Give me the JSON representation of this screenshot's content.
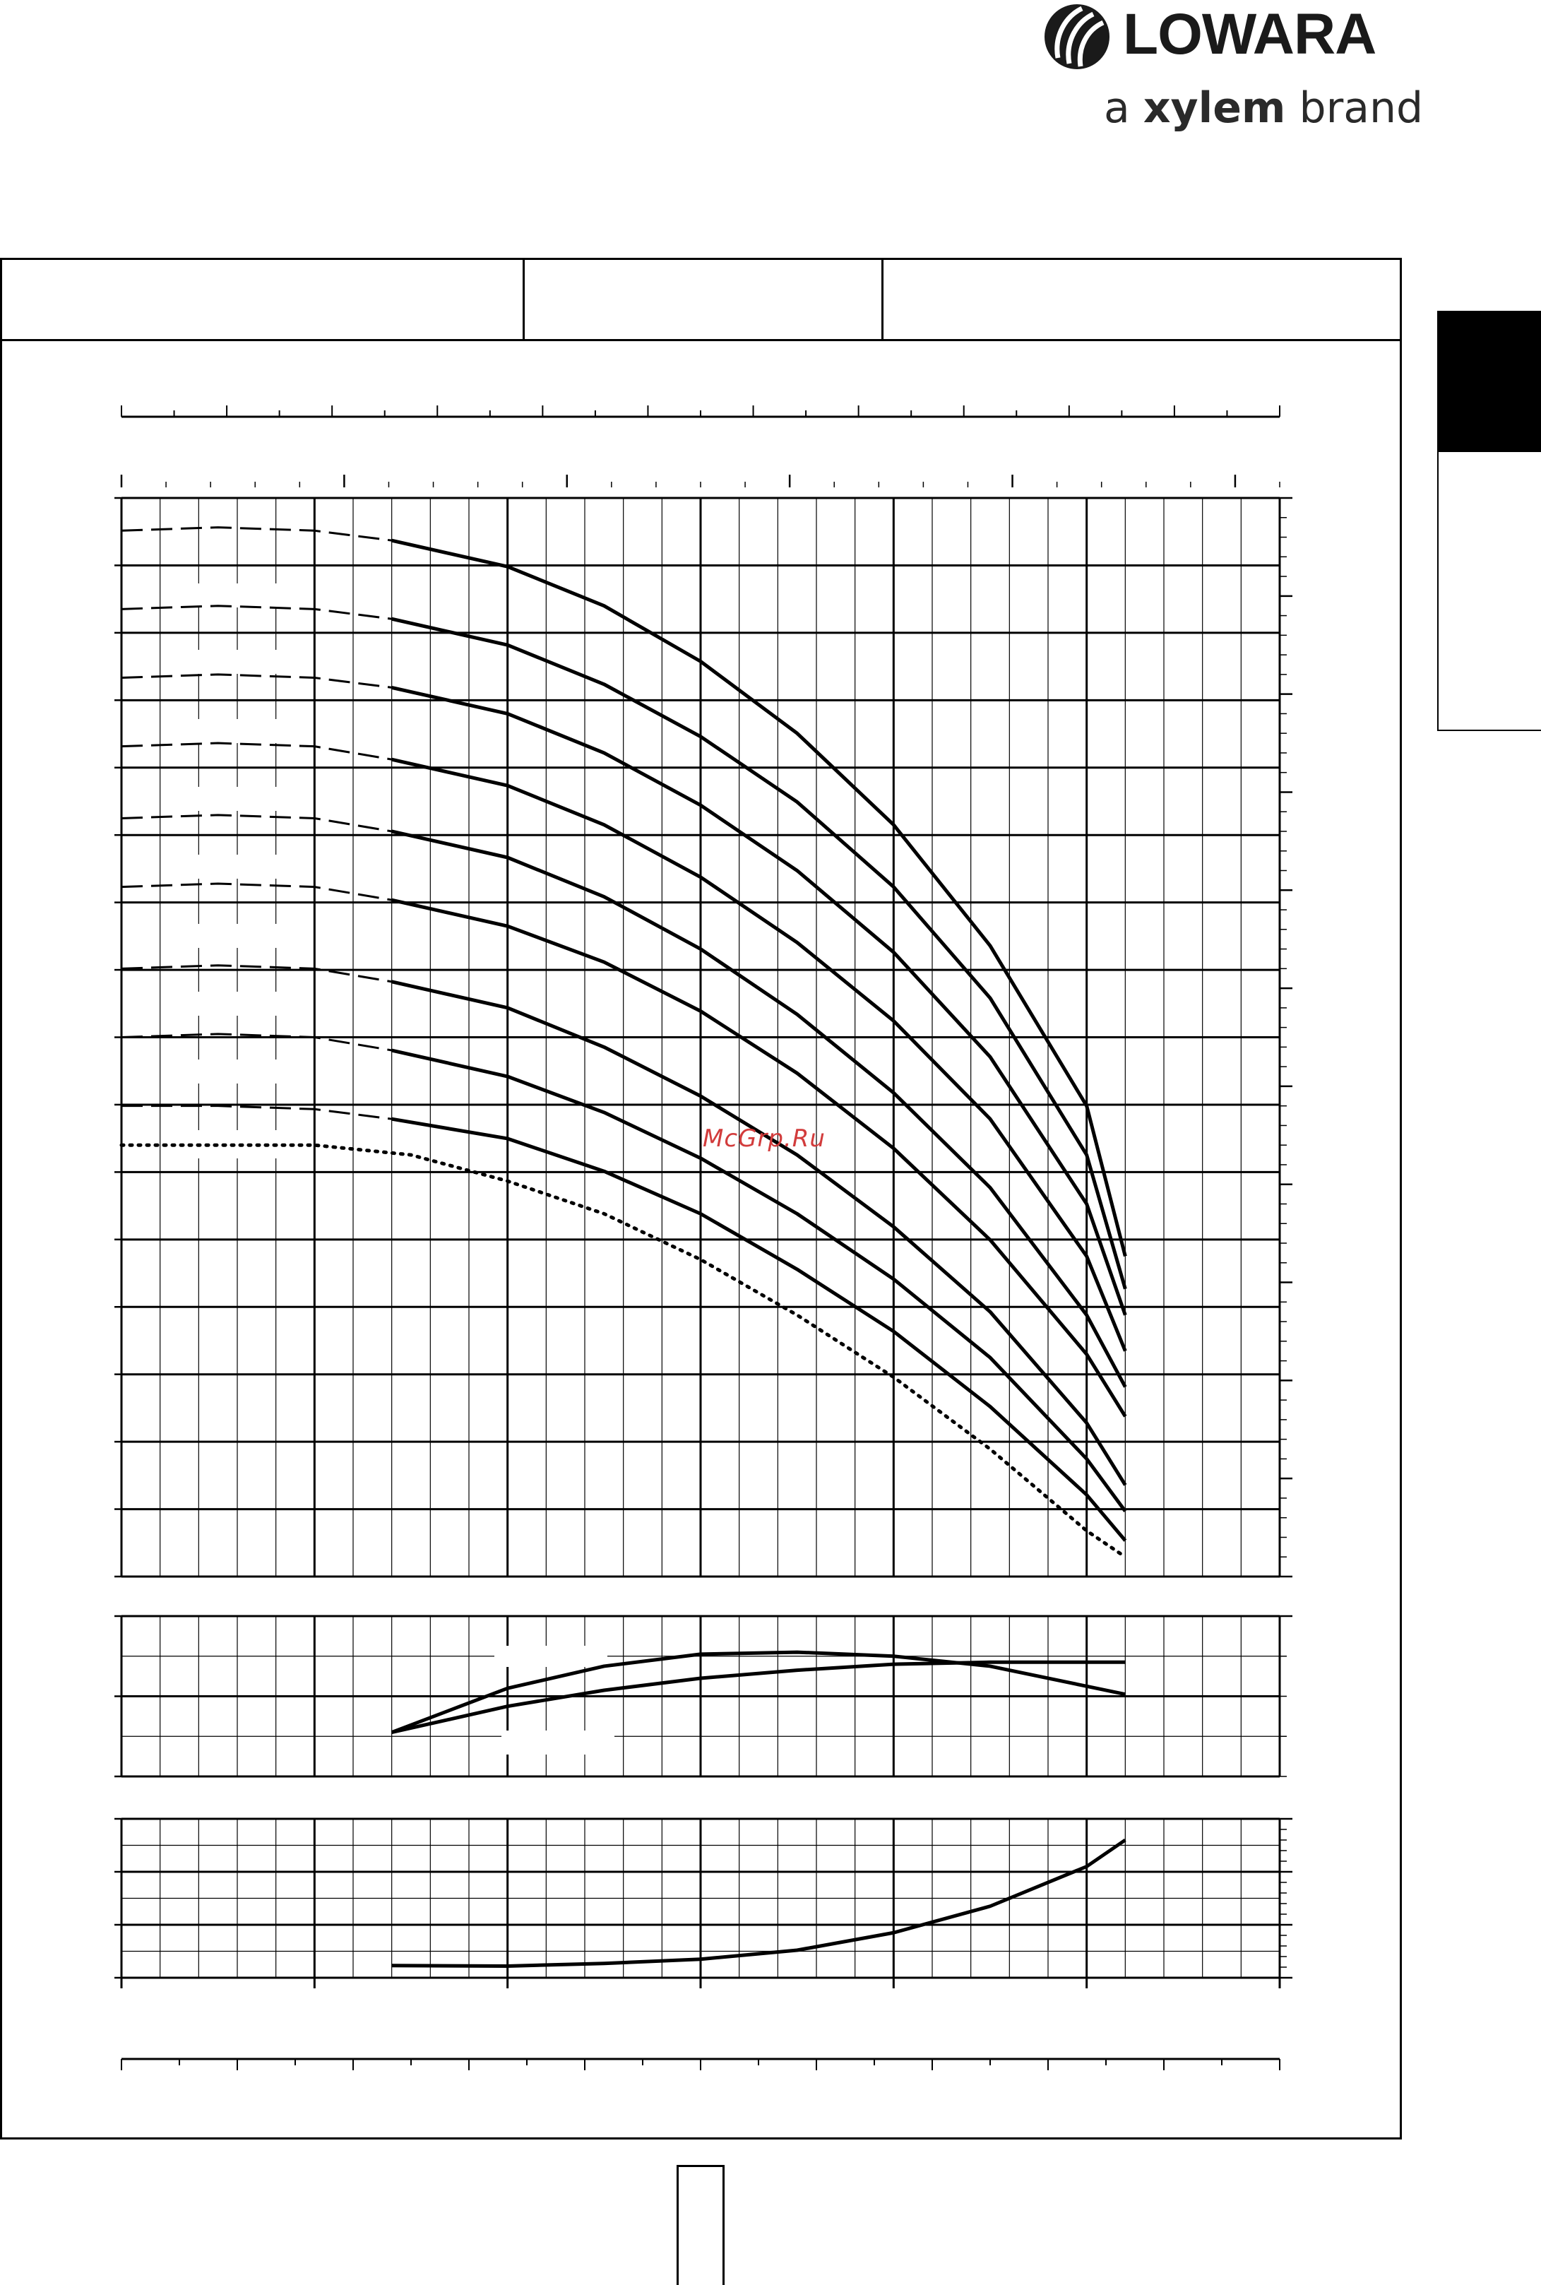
{
  "brand": {
    "logo_name": "LOWARA",
    "tagline_prefix": "a ",
    "tagline_brand": "xylem",
    "tagline_suffix": " brand"
  },
  "watermark": "McGrp.Ru",
  "colors": {
    "ink": "#000000",
    "watermark": "#d23c3c"
  },
  "chart_data": [
    {
      "type": "line",
      "panel": "head",
      "title": "",
      "xlabel": "",
      "ylabel": "",
      "xlim": [
        0,
        6
      ],
      "ylim": [
        0,
        16.5
      ],
      "grid": true,
      "series": [
        {
          "line_style": "dotted",
          "x": [
            0,
            0.5,
            1.0,
            1.5,
            2.0,
            2.5,
            3.0,
            3.5,
            4.0,
            4.5,
            5.0,
            5.2
          ],
          "y": [
            6.6,
            6.6,
            6.6,
            6.45,
            6.05,
            5.55,
            4.85,
            4.0,
            3.05,
            1.95,
            0.7,
            0.3
          ]
        },
        {
          "line_style": "solid",
          "dashed_below_x": 1.4,
          "x": [
            0,
            0.5,
            1.0,
            1.4,
            2.0,
            2.5,
            3.0,
            3.5,
            4.0,
            4.5,
            5.0,
            5.2
          ],
          "y": [
            7.2,
            7.2,
            7.15,
            7.0,
            6.7,
            6.2,
            5.55,
            4.7,
            3.75,
            2.6,
            1.25,
            0.55
          ]
        },
        {
          "line_style": "solid",
          "dashed_below_x": 1.4,
          "x": [
            0,
            0.5,
            1.0,
            1.4,
            2.0,
            2.5,
            3.0,
            3.5,
            4.0,
            4.5,
            5.0,
            5.2
          ],
          "y": [
            8.25,
            8.3,
            8.25,
            8.05,
            7.65,
            7.1,
            6.4,
            5.55,
            4.55,
            3.35,
            1.8,
            1.0
          ]
        },
        {
          "line_style": "solid",
          "dashed_below_x": 1.4,
          "x": [
            0,
            0.5,
            1.0,
            1.4,
            2.0,
            2.5,
            3.0,
            3.5,
            4.0,
            4.5,
            5.0,
            5.2
          ],
          "y": [
            9.3,
            9.35,
            9.3,
            9.1,
            8.7,
            8.1,
            7.35,
            6.45,
            5.35,
            4.05,
            2.35,
            1.4
          ]
        },
        {
          "line_style": "solid",
          "dashed_below_x": 1.4,
          "x": [
            0,
            0.5,
            1.0,
            1.4,
            2.0,
            2.5,
            3.0,
            3.5,
            4.0,
            4.5,
            5.0,
            5.2
          ],
          "y": [
            10.55,
            10.6,
            10.55,
            10.35,
            9.95,
            9.4,
            8.65,
            7.7,
            6.55,
            5.15,
            3.4,
            2.45
          ]
        },
        {
          "line_style": "solid",
          "dashed_below_x": 1.4,
          "x": [
            0,
            0.5,
            1.0,
            1.4,
            2.0,
            2.5,
            3.0,
            3.5,
            4.0,
            4.5,
            5.0,
            5.2
          ],
          "y": [
            11.6,
            11.65,
            11.6,
            11.4,
            11.0,
            10.4,
            9.6,
            8.6,
            7.4,
            5.95,
            4.0,
            2.9
          ]
        },
        {
          "line_style": "solid",
          "dashed_below_x": 1.4,
          "x": [
            0,
            0.5,
            1.0,
            1.4,
            2.0,
            2.5,
            3.0,
            3.5,
            4.0,
            4.5,
            5.0,
            5.2
          ],
          "y": [
            12.7,
            12.75,
            12.7,
            12.5,
            12.1,
            11.5,
            10.7,
            9.7,
            8.5,
            7.0,
            4.9,
            3.45
          ]
        },
        {
          "line_style": "solid",
          "dashed_below_x": 1.4,
          "x": [
            0,
            0.5,
            1.0,
            1.4,
            2.0,
            2.5,
            3.0,
            3.5,
            4.0,
            4.5,
            5.0,
            5.2
          ],
          "y": [
            13.75,
            13.8,
            13.75,
            13.6,
            13.2,
            12.6,
            11.8,
            10.8,
            9.55,
            7.95,
            5.7,
            4.0
          ]
        },
        {
          "line_style": "solid",
          "dashed_below_x": 1.4,
          "x": [
            0,
            0.5,
            1.0,
            1.4,
            2.0,
            2.5,
            3.0,
            3.5,
            4.0,
            4.5,
            5.0,
            5.2
          ],
          "y": [
            14.8,
            14.85,
            14.8,
            14.65,
            14.25,
            13.65,
            12.85,
            11.85,
            10.55,
            8.85,
            6.45,
            4.4
          ]
        },
        {
          "line_style": "solid",
          "dashed_below_x": 1.4,
          "x": [
            0,
            0.5,
            1.0,
            1.4,
            2.0,
            2.5,
            3.0,
            3.5,
            4.0,
            4.5,
            5.0,
            5.2
          ],
          "y": [
            16.0,
            16.05,
            16.0,
            15.85,
            15.45,
            14.85,
            14.0,
            12.9,
            11.5,
            9.65,
            7.2,
            4.9
          ]
        }
      ]
    },
    {
      "type": "line",
      "panel": "efficiency",
      "title": "",
      "xlabel": "",
      "ylabel": "",
      "xlim": [
        0,
        6
      ],
      "ylim": [
        0,
        4
      ],
      "grid": true,
      "series": [
        {
          "line_style": "solid",
          "x": [
            1.4,
            2.0,
            2.5,
            3.0,
            3.5,
            4.0,
            4.5,
            5.0,
            5.2
          ],
          "y": [
            1.1,
            2.2,
            2.75,
            3.05,
            3.1,
            3.0,
            2.75,
            2.25,
            2.05
          ]
        },
        {
          "line_style": "solid",
          "x": [
            1.4,
            2.0,
            2.5,
            3.0,
            3.5,
            4.0,
            4.5,
            5.0,
            5.2
          ],
          "y": [
            1.1,
            1.75,
            2.15,
            2.45,
            2.65,
            2.8,
            2.85,
            2.85,
            2.85
          ]
        }
      ]
    },
    {
      "type": "line",
      "panel": "npsh",
      "title": "",
      "xlabel": "",
      "ylabel": "",
      "xlim": [
        0,
        6
      ],
      "ylim": [
        0,
        3
      ],
      "grid": true,
      "series": [
        {
          "line_style": "solid",
          "x": [
            1.4,
            2.0,
            2.5,
            3.0,
            3.5,
            4.0,
            4.5,
            5.0,
            5.2
          ],
          "y": [
            0.23,
            0.22,
            0.27,
            0.35,
            0.52,
            0.85,
            1.35,
            2.1,
            2.6
          ]
        }
      ]
    }
  ]
}
